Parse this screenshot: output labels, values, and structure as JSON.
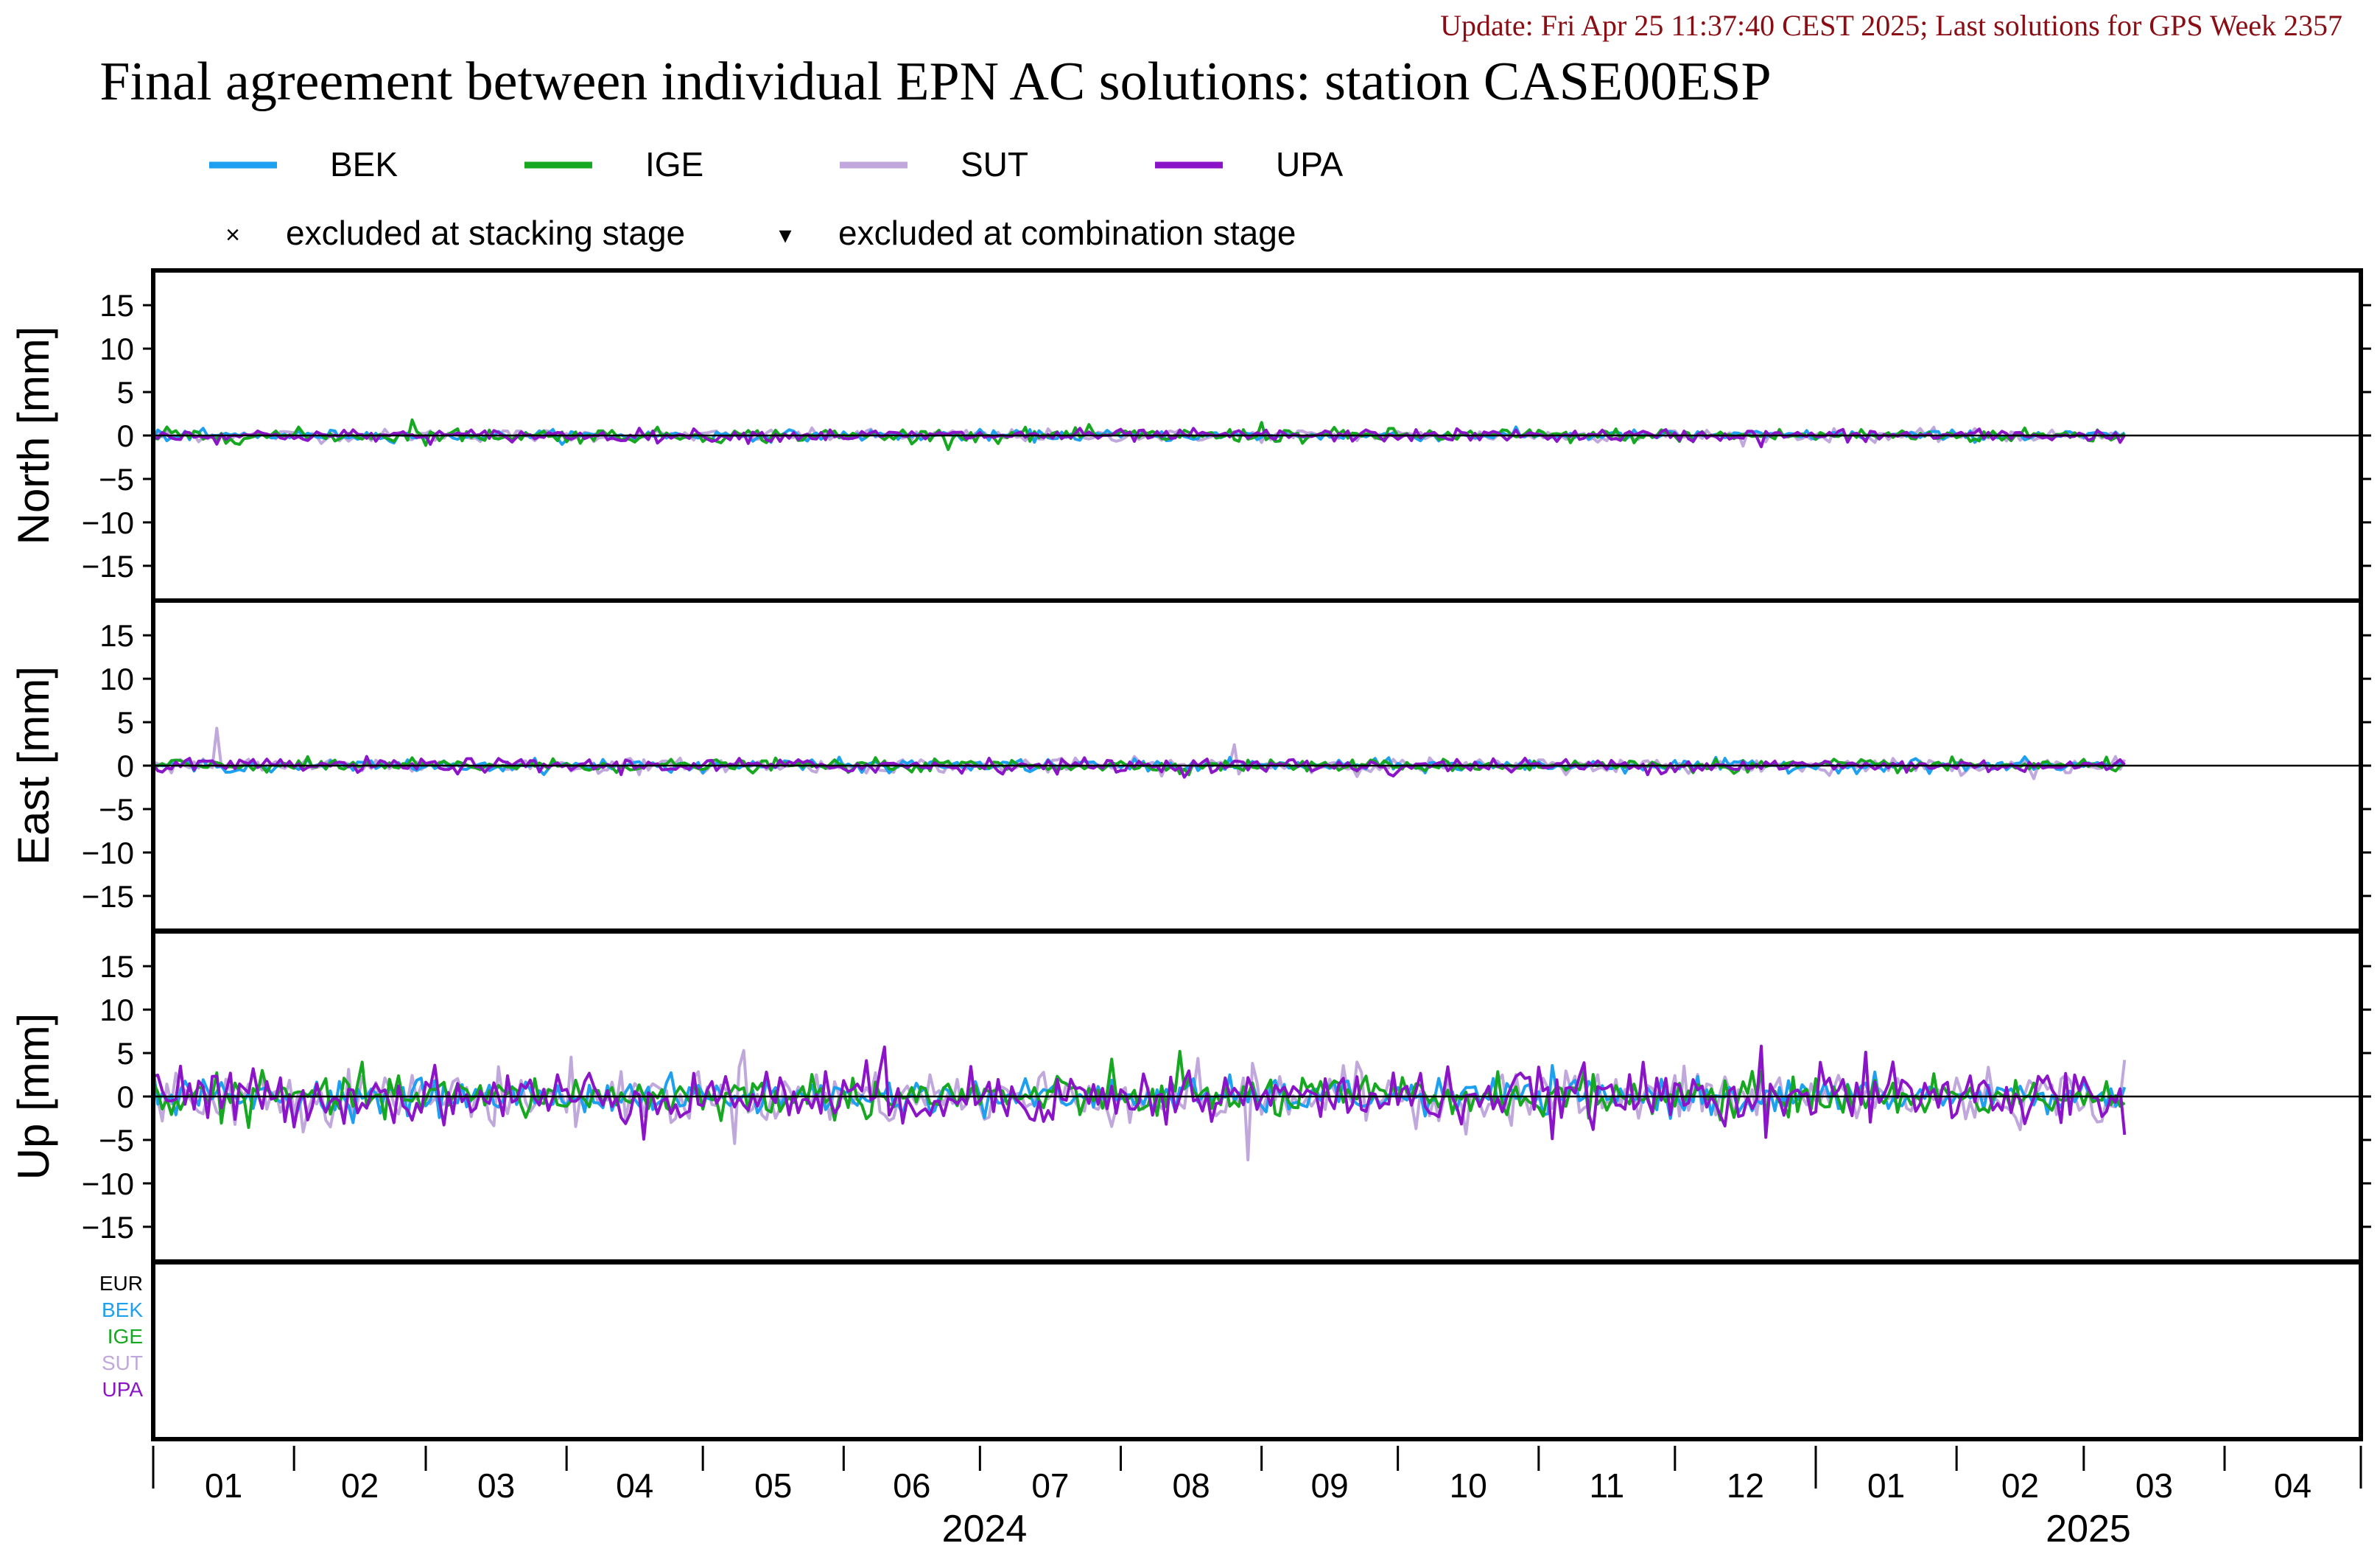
{
  "update_text": "Update: Fri Apr 25 11:37:40 CEST 2025; Last solutions for GPS Week 2357",
  "title": "Final agreement between individual EPN AC solutions: station CASE00ESP",
  "legend": [
    {
      "name": "BEK",
      "color": "#1ea0f0"
    },
    {
      "name": "IGE",
      "color": "#16a821"
    },
    {
      "name": "SUT",
      "color": "#c0a8dc"
    },
    {
      "name": "UPA",
      "color": "#8c14c8"
    }
  ],
  "markers": [
    {
      "symbol": "×",
      "label": "excluded at stacking stage"
    },
    {
      "symbol": "▾",
      "label": "excluded at combination stage"
    }
  ],
  "panels": [
    {
      "ylabel": "North [mm]",
      "yticks": [
        "15",
        "10",
        "5",
        "0",
        "−5",
        "−10",
        "−15"
      ]
    },
    {
      "ylabel": "East [mm]",
      "yticks": [
        "15",
        "10",
        "5",
        "0",
        "−5",
        "−10",
        "−15"
      ]
    },
    {
      "ylabel": "Up [mm]",
      "yticks": [
        "15",
        "10",
        "5",
        "0",
        "−5",
        "−10",
        "−15"
      ]
    }
  ],
  "ac_labels": [
    {
      "name": "EUR",
      "color": "#000000"
    },
    {
      "name": "BEK",
      "color": "#1ea0f0"
    },
    {
      "name": "IGE",
      "color": "#16a821"
    },
    {
      "name": "SUT",
      "color": "#c0a8dc"
    },
    {
      "name": "UPA",
      "color": "#8c14c8"
    }
  ],
  "x_month_labels": [
    "01",
    "02",
    "03",
    "04",
    "05",
    "06",
    "07",
    "08",
    "09",
    "10",
    "11",
    "12",
    "01",
    "02",
    "03",
    "04"
  ],
  "x_year_labels": [
    "2024",
    "2025"
  ],
  "chart_data": {
    "type": "line",
    "x_range": [
      "2024-01-01",
      "2025-04-30"
    ],
    "ylim": [
      -19,
      19
    ],
    "yticks": [
      15,
      10,
      5,
      0,
      -5,
      -10,
      -15
    ],
    "data_end": "2025-03-10",
    "series_names": [
      "BEK",
      "IGE",
      "SUT",
      "UPA"
    ],
    "components": [
      {
        "name": "North",
        "noise_std_mm": {
          "BEK": 0.3,
          "IGE": 0.4,
          "SUT": 0.35,
          "UPA": 0.35
        },
        "notable_points": [
          {
            "series": "IGE",
            "date": "2024-02-27",
            "value": 1.8
          },
          {
            "series": "IGE",
            "date": "2024-09-01",
            "value": 1.5
          },
          {
            "series": "UPA",
            "date": "2024-12-20",
            "value": -1.3
          }
        ]
      },
      {
        "name": "East",
        "noise_std_mm": {
          "BEK": 0.35,
          "IGE": 0.35,
          "SUT": 0.4,
          "UPA": 0.4
        },
        "notable_points": [
          {
            "series": "SUT",
            "date": "2024-01-15",
            "value": 4.3
          },
          {
            "series": "SUT",
            "date": "2024-08-26",
            "value": 2.4
          },
          {
            "series": "UPA",
            "date": "2024-09-30",
            "value": -1.2
          }
        ]
      },
      {
        "name": "Up",
        "noise_std_mm": {
          "BEK": 1.0,
          "IGE": 1.2,
          "SUT": 1.6,
          "UPA": 1.6
        },
        "notable_points": [
          {
            "series": "BEK",
            "date": "2024-01-01",
            "value": 3.3
          },
          {
            "series": "SUT",
            "date": "2024-05-10",
            "value": 5.3
          },
          {
            "series": "UPA",
            "date": "2024-06-10",
            "value": 5.7
          },
          {
            "series": "IGE",
            "date": "2024-08-14",
            "value": 5.2
          },
          {
            "series": "SUT",
            "date": "2024-08-29",
            "value": -7.3
          },
          {
            "series": "UPA",
            "date": "2024-12-20",
            "value": 5.8
          },
          {
            "series": "UPA",
            "date": "2025-01-12",
            "value": 5.1
          },
          {
            "series": "UPA",
            "date": "2025-03-10",
            "value": -4.4
          }
        ]
      }
    ]
  }
}
